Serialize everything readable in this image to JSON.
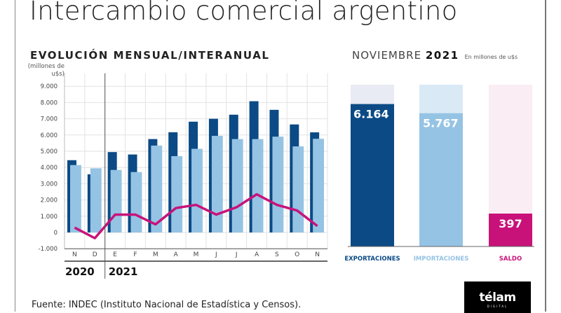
{
  "title": "Intercambio comercial argentino",
  "source": "Fuente: INDEC (Instituto Nacional de Estadística y Censos).",
  "logo": {
    "text": "télam",
    "sub": "DIGITAL"
  },
  "colors": {
    "exports": "#0b4a85",
    "imports": "#95c3e4",
    "saldo": "#c8127a",
    "exports_bg": "#e8eaf4",
    "imports_bg": "#d9e9f6",
    "saldo_bg": "#fbedf4"
  },
  "chart_data": [
    {
      "type": "bar",
      "title": "EVOLUCIÓN MENSUAL/INTERANUAL",
      "ylabel": "(millones de u$s)",
      "ylim": [
        -1000,
        9000
      ],
      "yticks": [
        9000,
        8000,
        7000,
        6000,
        5000,
        4000,
        3000,
        2000,
        1000,
        0,
        -1000
      ],
      "ytick_labels": [
        "9.000",
        "8.000",
        "7.000",
        "6.000",
        "5.000",
        "4.000",
        "3.000",
        "2.000",
        "1.000",
        "0",
        "-1.000"
      ],
      "grid": true,
      "categories": [
        "N",
        "D",
        "E",
        "F",
        "M",
        "A",
        "M",
        "J",
        "J",
        "A",
        "S",
        "O",
        "N"
      ],
      "years": [
        "2020",
        "2021"
      ],
      "series": [
        {
          "type": "bar",
          "color": "#0b4a85",
          "values": [
            4450,
            3580,
            4950,
            4800,
            5750,
            6170,
            6820,
            7000,
            7250,
            8080,
            7550,
            6650,
            6164
          ]
        },
        {
          "type": "bar",
          "color": "#95c3e4",
          "values": [
            4150,
            3950,
            3850,
            3720,
            5350,
            4700,
            5150,
            5950,
            5750,
            5750,
            5900,
            5300,
            5767
          ]
        },
        {
          "type": "line",
          "color": "#c8127a",
          "values": [
            300,
            -350,
            1100,
            1100,
            500,
            1500,
            1700,
            1100,
            1550,
            2350,
            1700,
            1350,
            397
          ]
        }
      ]
    },
    {
      "type": "bar",
      "title": "NOVIEMBRE",
      "title_bold": "2021",
      "unit": "En millones de u$s",
      "categories": [
        "EXPORTACIONES",
        "IMPORTACIONES",
        "SALDO"
      ],
      "values": [
        6164,
        5767,
        397
      ],
      "value_labels": [
        "6.164",
        "5.767",
        "397"
      ],
      "ylim": [
        0,
        7000
      ]
    }
  ]
}
